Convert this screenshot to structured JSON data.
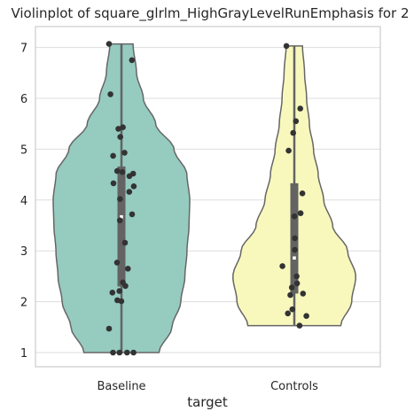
{
  "chart_data": {
    "type": "violin",
    "title": "Violinplot of square_glrlm_HighGrayLevelRunEmphasis for 2",
    "xlabel": "target",
    "ylabel": "",
    "categories": [
      "Baseline",
      "Controls"
    ],
    "ylim": [
      0.7,
      7.4
    ],
    "yticks": [
      1,
      2,
      3,
      4,
      5,
      6,
      7
    ],
    "grid": true,
    "colors": {
      "Baseline": "#96cbc0",
      "Controls": "#f8f8bd",
      "outline": "#666666",
      "box": "#636363",
      "points": "#333333"
    },
    "series": [
      {
        "category": "Baseline",
        "points": [
          7.07,
          6.75,
          6.08,
          5.43,
          5.4,
          5.24,
          4.93,
          4.87,
          4.57,
          4.55,
          4.52,
          4.47,
          4.33,
          4.27,
          4.16,
          4.02,
          3.72,
          3.6,
          3.16,
          2.77,
          2.65,
          2.38,
          2.31,
          2.21,
          2.18,
          2.03,
          2.01,
          1.47,
          1.0,
          1.0,
          1.0,
          1.0
        ],
        "min": 1.0,
        "q1": 2.3,
        "median": 3.67,
        "q3": 4.66,
        "max": 7.07,
        "violin_profile": [
          [
            1.0,
            0.55
          ],
          [
            1.5,
            0.74
          ],
          [
            2.0,
            0.87
          ],
          [
            2.5,
            0.93
          ],
          [
            3.0,
            0.96
          ],
          [
            3.5,
            0.99
          ],
          [
            4.0,
            1.0
          ],
          [
            4.5,
            0.96
          ],
          [
            5.0,
            0.77
          ],
          [
            5.5,
            0.5
          ],
          [
            6.0,
            0.32
          ],
          [
            6.5,
            0.22
          ],
          [
            7.07,
            0.17
          ]
        ]
      },
      {
        "category": "Controls",
        "points": [
          7.03,
          5.8,
          5.55,
          5.32,
          4.97,
          4.13,
          3.74,
          3.68,
          3.25,
          3.02,
          2.7,
          2.5,
          2.36,
          2.28,
          2.16,
          2.13,
          1.85,
          1.77,
          1.72,
          1.53
        ],
        "min": 1.53,
        "q1": 2.16,
        "median": 2.86,
        "q3": 4.33,
        "max": 7.03,
        "violin_profile": [
          [
            1.53,
            0.68
          ],
          [
            2.0,
            0.84
          ],
          [
            2.5,
            0.9
          ],
          [
            3.0,
            0.78
          ],
          [
            3.5,
            0.56
          ],
          [
            4.0,
            0.43
          ],
          [
            4.5,
            0.35
          ],
          [
            5.0,
            0.28
          ],
          [
            5.5,
            0.22
          ],
          [
            6.0,
            0.18
          ],
          [
            6.5,
            0.15
          ],
          [
            7.03,
            0.12
          ]
        ]
      }
    ]
  }
}
